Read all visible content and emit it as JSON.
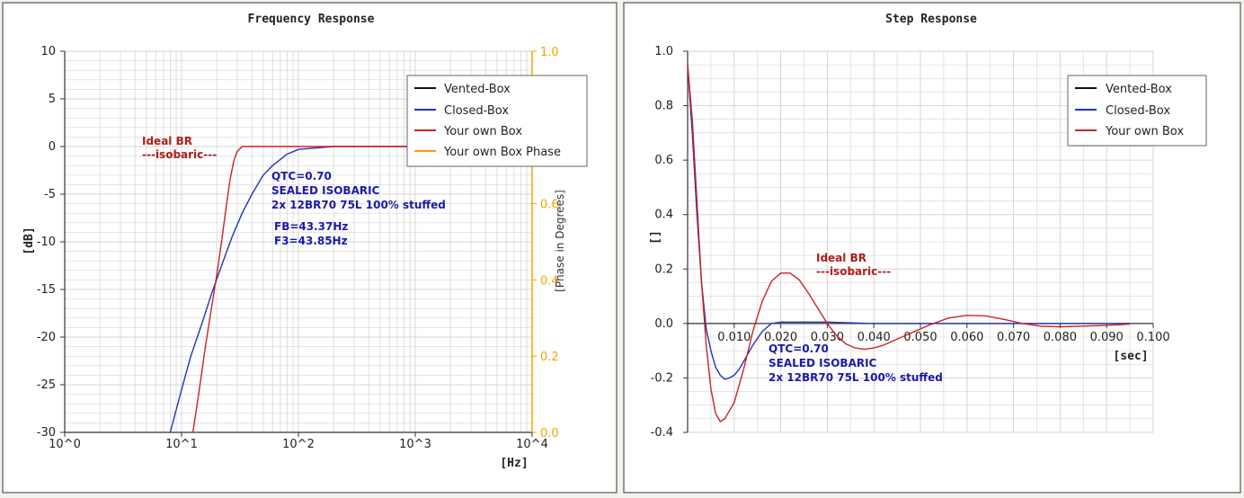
{
  "panels": [
    {
      "title": "Frequency Response"
    },
    {
      "title": "Step Response"
    }
  ],
  "colors": {
    "vented": "#111111",
    "closed": "#2233bb",
    "own": "#cc2222",
    "phase": "#f0a500",
    "grid": "#d6d6d6",
    "annotation_blue": "#1a1aa8",
    "annotation_red": "#b01c1c"
  },
  "chart_data": [
    {
      "type": "line",
      "title": "Frequency Response",
      "xlabel": "[Hz]",
      "ylabel": "[dB]",
      "y2label": "[Phase in Degrees]",
      "xscale": "log",
      "xlim": [
        1,
        10000
      ],
      "ylim": [
        -30,
        10
      ],
      "y2lim": [
        0.0,
        1.0
      ],
      "grid": true,
      "legend_position": "top-right",
      "x_tick_labels": [
        "10^0",
        "10^1",
        "10^2",
        "10^3",
        "10^4"
      ],
      "y_tick_labels": [
        "10",
        "5",
        "0",
        "-5",
        "-10",
        "-15",
        "-20",
        "-25",
        "-30"
      ],
      "y2_tick_labels": [
        "1.0",
        "0.8",
        "0.6",
        "0.4",
        "0.2",
        "0.0"
      ],
      "legend": [
        "Vented-Box",
        "Closed-Box",
        "Your own Box",
        "Your own Box Phase"
      ],
      "series": [
        {
          "name": "Closed-Box",
          "x": [
            8,
            10,
            12,
            15,
            18,
            22,
            27,
            33,
            40,
            50,
            60,
            80,
            100,
            200,
            500,
            1000,
            3000,
            10000
          ],
          "y": [
            -30,
            -25.5,
            -22,
            -18.5,
            -15.5,
            -12.5,
            -9.5,
            -7,
            -5,
            -3,
            -2,
            -0.8,
            -0.3,
            0,
            0,
            0,
            0,
            0
          ]
        },
        {
          "name": "Your own Box",
          "x": [
            12.5,
            14,
            16,
            18,
            20,
            22,
            24,
            26,
            28,
            30,
            33,
            36,
            40,
            60,
            100,
            1000,
            3000
          ],
          "y": [
            -30,
            -26,
            -21,
            -17,
            -13.5,
            -10,
            -6.5,
            -3.5,
            -1.5,
            -0.5,
            0,
            0,
            0,
            0,
            0,
            0,
            0
          ]
        }
      ],
      "annotations": [
        {
          "lines": [
            "Ideal BR",
            "---isobaric---"
          ],
          "color": "red"
        },
        {
          "lines": [
            "QTC=0.70",
            "SEALED ISOBARIC",
            "2x 12BR70 75L 100% stuffed"
          ],
          "color": "blue"
        },
        {
          "lines": [
            "FB=43.37Hz",
            "F3=43.85Hz"
          ],
          "color": "blue"
        }
      ]
    },
    {
      "type": "line",
      "title": "Step Response",
      "xlabel": "[sec]",
      "ylabel": "[]",
      "xlim": [
        0,
        0.1
      ],
      "ylim": [
        -0.4,
        1.0
      ],
      "grid": true,
      "legend_position": "top-right",
      "x_tick_labels": [
        "0.010",
        "0.020",
        "0.030",
        "0.040",
        "0.050",
        "0.060",
        "0.070",
        "0.080",
        "0.090",
        "0.100"
      ],
      "y_tick_labels": [
        "1.0",
        "0.8",
        "0.6",
        "0.4",
        "0.2",
        "0.0",
        "-0.2",
        "-0.4"
      ],
      "legend": [
        "Vented-Box",
        "Closed-Box",
        "Your own Box"
      ],
      "series": [
        {
          "name": "Closed-Box",
          "x": [
            0,
            0.001,
            0.002,
            0.003,
            0.004,
            0.005,
            0.006,
            0.007,
            0.008,
            0.009,
            0.01,
            0.011,
            0.012,
            0.014,
            0.016,
            0.018,
            0.02,
            0.025,
            0.03,
            0.04,
            0.05,
            0.06,
            0.08,
            0.095
          ],
          "y": [
            0.95,
            0.7,
            0.4,
            0.15,
            -0.02,
            -0.1,
            -0.16,
            -0.19,
            -0.205,
            -0.2,
            -0.19,
            -0.17,
            -0.14,
            -0.08,
            -0.03,
            0.0,
            0.005,
            0.005,
            0.005,
            0.0,
            0.0,
            0.0,
            0.0,
            0.0
          ]
        },
        {
          "name": "Your own Box",
          "x": [
            0,
            0.001,
            0.002,
            0.003,
            0.004,
            0.005,
            0.006,
            0.007,
            0.008,
            0.01,
            0.012,
            0.014,
            0.016,
            0.018,
            0.02,
            0.022,
            0.024,
            0.026,
            0.028,
            0.03,
            0.032,
            0.034,
            0.036,
            0.038,
            0.04,
            0.042,
            0.044,
            0.048,
            0.052,
            0.056,
            0.06,
            0.064,
            0.068,
            0.072,
            0.076,
            0.08,
            0.084,
            0.088,
            0.092,
            0.095
          ],
          "y": [
            0.95,
            0.75,
            0.45,
            0.15,
            -0.08,
            -0.24,
            -0.33,
            -0.36,
            -0.35,
            -0.29,
            -0.17,
            -0.03,
            0.08,
            0.155,
            0.185,
            0.185,
            0.16,
            0.11,
            0.055,
            0.0,
            -0.045,
            -0.075,
            -0.09,
            -0.095,
            -0.09,
            -0.08,
            -0.065,
            -0.035,
            -0.005,
            0.02,
            0.03,
            0.028,
            0.015,
            0.0,
            -0.01,
            -0.012,
            -0.01,
            -0.008,
            -0.005,
            -0.002
          ]
        }
      ],
      "annotations": [
        {
          "lines": [
            "Ideal BR",
            "---isobaric---"
          ],
          "color": "red"
        },
        {
          "lines": [
            "QTC=0.70",
            "SEALED ISOBARIC",
            "2x 12BR70 75L 100% stuffed"
          ],
          "color": "blue"
        }
      ]
    }
  ]
}
